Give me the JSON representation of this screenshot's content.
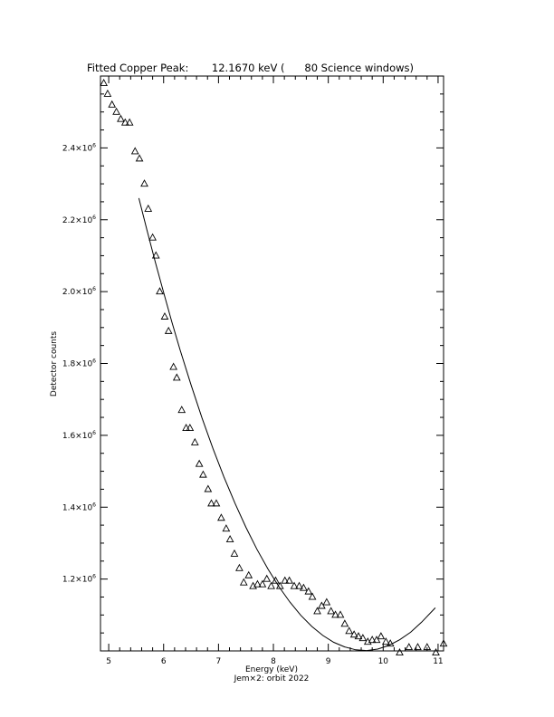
{
  "chart_data": {
    "type": "scatter",
    "title": "Fitted Copper Peak:       12.1670 keV (      80 Science windows)",
    "xlabel": "Energy (keV)",
    "ylabel": "Detector counts",
    "subtitle": "Jem×2: orbit 2022",
    "xlim": [
      4.85,
      11.1
    ],
    "ylim": [
      1000000,
      2600000
    ],
    "xticks": [
      5,
      6,
      7,
      8,
      9,
      10,
      11
    ],
    "xtick_labels": [
      "5",
      "6",
      "7",
      "8",
      "9",
      "10",
      "11"
    ],
    "yticks": [
      1200000,
      1400000,
      1600000,
      1800000,
      2000000,
      2200000,
      2400000
    ],
    "ytick_mantissas": [
      "1.2×10",
      "1.4×10",
      "1.6×10",
      "1.8×10",
      "2.0×10",
      "2.2×10",
      "2.4×10"
    ],
    "ytick_exponent": "6",
    "grid": false,
    "series": [
      {
        "marker": "triangle",
        "x": [
          4.91,
          4.98,
          5.06,
          5.14,
          5.22,
          5.3,
          5.38,
          5.48,
          5.56,
          5.65,
          5.72,
          5.8,
          5.86,
          5.93,
          6.02,
          6.09,
          6.18,
          6.24,
          6.33,
          6.41,
          6.48,
          6.57,
          6.65,
          6.72,
          6.81,
          6.87,
          6.96,
          7.05,
          7.14,
          7.21,
          7.29,
          7.38,
          7.46,
          7.55,
          7.63,
          7.71,
          7.8,
          7.88,
          7.96,
          8.04,
          8.12,
          8.21,
          8.29,
          8.38,
          8.47,
          8.55,
          8.64,
          8.71,
          8.8,
          8.88,
          8.97,
          9.05,
          9.13,
          9.22,
          9.3,
          9.38,
          9.47,
          9.55,
          9.63,
          9.72,
          9.8,
          9.88,
          9.96,
          10.05,
          10.13,
          10.3,
          10.47,
          10.63,
          10.8,
          10.96,
          11.1
        ],
        "y": [
          2580000,
          2550000,
          2520000,
          2500000,
          2480000,
          2470000,
          2470000,
          2390000,
          2370000,
          2300000,
          2230000,
          2150000,
          2100000,
          2000000,
          1930000,
          1890000,
          1790000,
          1760000,
          1670000,
          1620000,
          1620000,
          1580000,
          1520000,
          1490000,
          1450000,
          1410000,
          1410000,
          1370000,
          1340000,
          1310000,
          1270000,
          1230000,
          1190000,
          1210000,
          1180000,
          1185000,
          1185000,
          1200000,
          1180000,
          1195000,
          1180000,
          1195000,
          1195000,
          1180000,
          1180000,
          1175000,
          1165000,
          1150000,
          1110000,
          1125000,
          1135000,
          1110000,
          1100000,
          1100000,
          1075000,
          1055000,
          1045000,
          1040000,
          1035000,
          1025000,
          1030000,
          1030000,
          1040000,
          1025000,
          1020000,
          995000,
          1010000,
          1010000,
          1010000,
          995000,
          1020000
        ]
      },
      {
        "marker": "line",
        "x": [
          5.55,
          5.7,
          5.85,
          6.0,
          6.15,
          6.3,
          6.5,
          6.7,
          6.9,
          7.1,
          7.3,
          7.5,
          7.7,
          7.9,
          8.1,
          8.3,
          8.5,
          8.7,
          8.9,
          9.1,
          9.3,
          9.5,
          9.7,
          9.9,
          10.1,
          10.3,
          10.5,
          10.7,
          10.95
        ],
        "y": [
          2260000,
          2170000,
          2082000,
          1998000,
          1916000,
          1838000,
          1740000,
          1648000,
          1563000,
          1484000,
          1411000,
          1344000,
          1283000,
          1228000,
          1179000,
          1136000,
          1099000,
          1068000,
          1043000,
          1024000,
          1011000,
          1003000,
          1001000,
          1005000,
          1015000,
          1031000,
          1052000,
          1080000,
          1120000
        ]
      }
    ]
  }
}
